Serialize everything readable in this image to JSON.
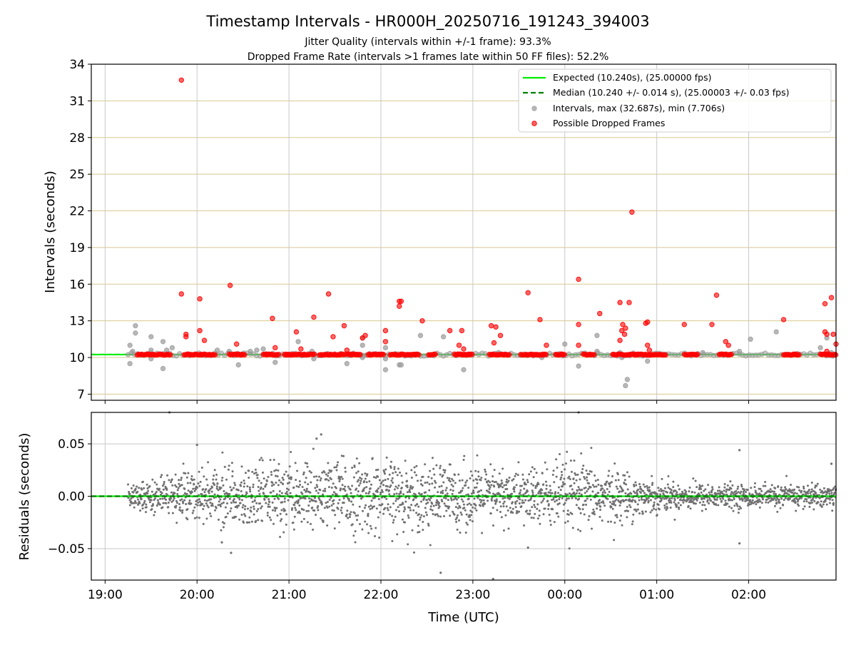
{
  "title": "Timestamp Intervals - HR000H_20250716_191243_394003",
  "subtitle1": "Jitter Quality (intervals within +/-1 frame): 93.3%",
  "subtitle2": "Dropped Frame Rate (intervals >1 frames late within 50 FF files): 52.2%",
  "colors": {
    "expected": "#00ee00",
    "median": "#008000",
    "intervals": "#a0a0a0",
    "dropped": "#ff0000",
    "residuals": "#707070",
    "hgrid_top": "#d8c890",
    "grid": "#c8c8c8"
  },
  "chart_data": [
    {
      "type": "scatter",
      "panel": "intervals",
      "ylabel": "Intervals (seconds)",
      "ylim": [
        6.5,
        34
      ],
      "yticks": [
        7,
        10,
        13,
        16,
        19,
        22,
        25,
        28,
        31,
        34
      ],
      "ytick_labels": [
        "7",
        "10",
        "13",
        "16",
        "19",
        "22",
        "25",
        "28",
        "31",
        "34"
      ],
      "xlim_hours": [
        18.85,
        26.95
      ],
      "xtick_hours": [
        19,
        20,
        21,
        22,
        23,
        24,
        25,
        26
      ],
      "xtick_labels": [
        "19:00",
        "20:00",
        "21:00",
        "22:00",
        "23:00",
        "00:00",
        "01:00",
        "02:00"
      ],
      "grid": true,
      "legend": {
        "position": "upper-right",
        "entries": [
          "Expected (10.240s), (25.00000 fps)",
          "Median (10.240 +/- 0.014 s), (25.00003 +/- 0.03 fps)",
          "Intervals, max (32.687s), min (7.706s)",
          "Possible Dropped Frames"
        ]
      },
      "expected_value": 10.24,
      "median_value": 10.24,
      "series": [
        {
          "name": "Intervals, max (32.687s), min (7.706s)",
          "note_points": [
            [
              19.27,
              11.0
            ],
            [
              19.27,
              9.5
            ],
            [
              19.33,
              12.6
            ],
            [
              19.33,
              12.0
            ],
            [
              19.3,
              10.5
            ],
            [
              19.5,
              11.7
            ],
            [
              19.5,
              10.6
            ],
            [
              19.5,
              9.9
            ],
            [
              19.63,
              11.3
            ],
            [
              19.63,
              9.1
            ],
            [
              19.67,
              10.6
            ],
            [
              19.73,
              10.8
            ],
            [
              20.22,
              10.6
            ],
            [
              20.35,
              10.5
            ],
            [
              20.45,
              9.4
            ],
            [
              20.58,
              10.5
            ],
            [
              20.65,
              10.6
            ],
            [
              20.72,
              10.7
            ],
            [
              20.85,
              9.6
            ],
            [
              21.1,
              11.3
            ],
            [
              21.25,
              10.5
            ],
            [
              21.27,
              9.9
            ],
            [
              21.63,
              9.5
            ],
            [
              21.8,
              11.6
            ],
            [
              21.8,
              11.0
            ],
            [
              21.8,
              10.0
            ],
            [
              22.05,
              10.8
            ],
            [
              22.05,
              9.9
            ],
            [
              22.05,
              9.0
            ],
            [
              22.2,
              9.4
            ],
            [
              22.22,
              9.4
            ],
            [
              22.43,
              11.8
            ],
            [
              22.68,
              11.7
            ],
            [
              22.9,
              9.0
            ],
            [
              23.28,
              10.4
            ],
            [
              23.75,
              10.0
            ],
            [
              24.0,
              11.1
            ],
            [
              24.15,
              9.3
            ],
            [
              24.35,
              11.8
            ],
            [
              24.35,
              10.5
            ],
            [
              24.6,
              10.4
            ],
            [
              24.62,
              10.0
            ],
            [
              24.66,
              7.7
            ],
            [
              24.68,
              8.2
            ],
            [
              24.9,
              9.7
            ],
            [
              25.5,
              10.4
            ],
            [
              25.9,
              10.5
            ],
            [
              26.02,
              11.5
            ],
            [
              26.3,
              12.1
            ],
            [
              26.78,
              10.8
            ],
            [
              26.85,
              11.6
            ],
            [
              26.9,
              10.4
            ]
          ]
        },
        {
          "name": "Possible Dropped Frames",
          "baseline_runs": [
            [
              19.35,
              19.72
            ],
            [
              19.86,
              20.2
            ],
            [
              20.35,
              20.52
            ],
            [
              20.72,
              20.9
            ],
            [
              20.95,
              21.28
            ],
            [
              21.33,
              21.6
            ],
            [
              21.62,
              21.78
            ],
            [
              21.86,
              22.04
            ],
            [
              22.1,
              22.42
            ],
            [
              22.52,
              22.6
            ],
            [
              22.8,
              23.0
            ],
            [
              23.18,
              23.4
            ],
            [
              23.52,
              23.8
            ],
            [
              23.9,
              24.0
            ],
            [
              24.2,
              24.33
            ],
            [
              24.52,
              25.1
            ],
            [
              25.3,
              25.45
            ],
            [
              25.68,
              25.82
            ],
            [
              26.38,
              26.55
            ],
            [
              26.78,
              26.95
            ]
          ],
          "note_points": [
            [
              19.83,
              32.7
            ],
            [
              19.83,
              15.2
            ],
            [
              19.88,
              11.9
            ],
            [
              19.88,
              11.7
            ],
            [
              20.03,
              14.8
            ],
            [
              20.03,
              12.2
            ],
            [
              20.08,
              11.4
            ],
            [
              20.36,
              15.9
            ],
            [
              20.43,
              11.1
            ],
            [
              20.82,
              13.2
            ],
            [
              20.85,
              10.8
            ],
            [
              21.08,
              12.1
            ],
            [
              21.13,
              10.7
            ],
            [
              21.27,
              13.3
            ],
            [
              21.43,
              15.2
            ],
            [
              21.48,
              11.7
            ],
            [
              21.6,
              12.6
            ],
            [
              21.63,
              10.6
            ],
            [
              21.8,
              11.6
            ],
            [
              21.83,
              11.8
            ],
            [
              22.05,
              12.2
            ],
            [
              22.05,
              11.3
            ],
            [
              22.2,
              14.6
            ],
            [
              22.22,
              14.6
            ],
            [
              22.2,
              14.2
            ],
            [
              22.45,
              13.0
            ],
            [
              22.75,
              12.2
            ],
            [
              22.85,
              11.0
            ],
            [
              22.88,
              12.2
            ],
            [
              22.9,
              10.7
            ],
            [
              23.2,
              12.6
            ],
            [
              23.25,
              12.5
            ],
            [
              23.23,
              11.2
            ],
            [
              23.3,
              11.8
            ],
            [
              23.6,
              15.3
            ],
            [
              23.73,
              13.1
            ],
            [
              23.8,
              11.0
            ],
            [
              24.15,
              16.4
            ],
            [
              24.15,
              12.7
            ],
            [
              24.15,
              11.0
            ],
            [
              24.38,
              13.6
            ],
            [
              24.6,
              14.5
            ],
            [
              24.6,
              11.4
            ],
            [
              24.62,
              12.2
            ],
            [
              24.63,
              12.7
            ],
            [
              24.65,
              11.9
            ],
            [
              24.66,
              12.4
            ],
            [
              24.7,
              14.5
            ],
            [
              24.73,
              21.9
            ],
            [
              24.88,
              12.8
            ],
            [
              24.9,
              12.9
            ],
            [
              24.9,
              11.0
            ],
            [
              24.92,
              10.6
            ],
            [
              25.3,
              12.7
            ],
            [
              25.6,
              12.7
            ],
            [
              25.65,
              15.1
            ],
            [
              25.75,
              11.3
            ],
            [
              25.78,
              11.0
            ],
            [
              26.38,
              13.1
            ],
            [
              26.83,
              14.4
            ],
            [
              26.83,
              12.1
            ],
            [
              26.85,
              11.9
            ],
            [
              26.85,
              10.5
            ],
            [
              26.9,
              14.9
            ],
            [
              26.92,
              11.9
            ],
            [
              26.95,
              11.1
            ]
          ]
        }
      ]
    },
    {
      "type": "scatter",
      "panel": "residuals",
      "xlabel": "Time (UTC)",
      "ylabel": "Residuals (seconds)",
      "ylim": [
        -0.08,
        0.08
      ],
      "yticks": [
        0.05,
        0.0,
        -0.05
      ],
      "ytick_labels": [
        "0.05",
        "0.00",
        "−0.05"
      ],
      "xlim_hours": [
        18.85,
        26.95
      ],
      "xtick_hours": [
        19,
        20,
        21,
        22,
        23,
        24,
        25,
        26
      ],
      "xtick_labels": [
        "19:00",
        "20:00",
        "21:00",
        "22:00",
        "23:00",
        "00:00",
        "01:00",
        "02:00"
      ],
      "grid": true,
      "x_range_hours": [
        19.25,
        26.95
      ],
      "approx_point_count": 2600,
      "spread_std_by_hour": [
        [
          19.25,
          0.006
        ],
        [
          19.8,
          0.011
        ],
        [
          20.5,
          0.016
        ],
        [
          21.5,
          0.017
        ],
        [
          22.5,
          0.016
        ],
        [
          23.5,
          0.013
        ],
        [
          24.0,
          0.017
        ],
        [
          24.5,
          0.013
        ],
        [
          25.0,
          0.007
        ],
        [
          26.0,
          0.005
        ],
        [
          26.95,
          0.006
        ]
      ],
      "notable_points": [
        [
          19.7,
          0.08
        ],
        [
          20.0,
          0.049
        ],
        [
          21.35,
          0.059
        ],
        [
          21.3,
          0.055
        ],
        [
          22.65,
          -0.073
        ],
        [
          23.22,
          -0.079
        ],
        [
          23.6,
          -0.049
        ],
        [
          24.15,
          0.08
        ],
        [
          25.9,
          0.044
        ],
        [
          25.9,
          -0.045
        ],
        [
          20.37,
          -0.054
        ],
        [
          20.27,
          -0.044
        ],
        [
          26.9,
          0.031
        ]
      ]
    }
  ]
}
